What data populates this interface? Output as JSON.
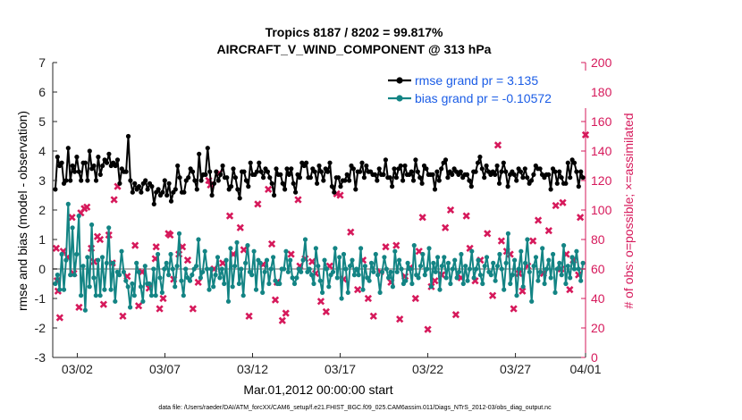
{
  "chart_data": {
    "type": "line",
    "title_line1": "Tropics 8187 / 8202 = 99.817%",
    "title_line2": "AIRCRAFT_V_WIND_COMPONENT @ 313 hPa",
    "xlabel": "Mar.01,2012 00:00:00 start",
    "ylabel": "rmse and bias (model - observation)",
    "y2label": "# of obs: o=possible; ×=assimilated",
    "xlim": [
      0.6,
      31.0
    ],
    "ylim": [
      -3,
      7
    ],
    "y2lim": [
      0,
      200
    ],
    "x_ticks": [
      {
        "value": 2,
        "label": "03/02"
      },
      {
        "value": 7,
        "label": "03/07"
      },
      {
        "value": 12,
        "label": "03/12"
      },
      {
        "value": 17,
        "label": "03/17"
      },
      {
        "value": 22,
        "label": "03/22"
      },
      {
        "value": 27,
        "label": "03/27"
      },
      {
        "value": 31,
        "label": "04/01"
      }
    ],
    "y_ticks": [
      "-3",
      "-2",
      "-1",
      "0",
      "1",
      "2",
      "3",
      "4",
      "5",
      "6",
      "7"
    ],
    "y2_ticks": [
      "0",
      "20",
      "40",
      "60",
      "80",
      "100",
      "120",
      "140",
      "160",
      "180",
      "200"
    ],
    "zero_line": 0,
    "colors": {
      "rmse": "#000000",
      "bias": "#138484",
      "obs": "#d6195b",
      "legend_text": "#1a5ce6",
      "zero": "#b0b0b0"
    },
    "series": [
      {
        "name": "rmse grand pr = 3.135",
        "values": [
          2.7,
          3.8,
          3.5,
          3.6,
          2.9,
          3.0,
          4.1,
          3.0,
          3.5,
          3.3,
          3.8,
          3.3,
          3.0,
          3.6,
          3.6,
          3.0,
          4.0,
          3.4,
          3.5,
          3.0,
          3.8,
          3.2,
          3.5,
          3.7,
          3.6,
          3.9,
          3.5,
          3.6,
          3.5,
          3.7,
          2.9,
          3.4,
          3.3,
          3.3,
          4.5,
          3.0,
          2.6,
          2.9,
          2.7,
          2.8,
          2.6,
          2.9,
          3.0,
          2.7,
          2.9,
          2.8,
          2.2,
          2.6,
          2.7,
          2.5,
          2.6,
          3.0,
          2.5,
          2.9,
          2.3,
          2.6,
          2.7,
          3.5,
          3.1,
          2.6,
          2.6,
          3.0,
          3.1,
          3.4,
          3.3,
          3.0,
          2.7,
          3.9,
          3.0,
          3.2,
          3.2,
          4.1,
          3.3,
          2.5,
          2.9,
          3.3,
          3.0,
          3.2,
          3.5,
          3.1,
          3.1,
          2.7,
          2.8,
          3.4,
          3.1,
          2.7,
          2.4,
          3.3,
          3.3,
          3.0,
          2.8,
          3.6,
          3.2,
          3.2,
          3.3,
          3.6,
          3.3,
          3.1,
          3.4,
          3.3,
          3.1,
          2.9,
          2.5,
          3.4,
          3.2,
          3.2,
          2.9,
          2.7,
          3.4,
          3.2,
          3.4,
          2.9,
          2.6,
          3.2,
          3.1,
          3.6,
          3.5,
          3.6,
          3.1,
          3.1,
          3.4,
          3.3,
          2.9,
          3.5,
          3.3,
          3.0,
          3.4,
          3.3,
          3.6,
          2.8,
          2.6,
          3.1,
          3.1,
          2.8,
          3.0,
          3.0,
          3.2,
          3.0,
          3.5,
          3.4,
          2.7,
          3.3,
          3.3,
          3.6,
          3.1,
          3.5,
          3.3,
          3.3,
          3.2,
          3.2,
          3.0,
          3.4,
          3.2,
          3.2,
          3.7,
          3.1,
          3.1,
          2.8,
          3.4,
          3.1,
          3.4,
          3.5,
          3.0,
          3.5,
          3.2,
          3.2,
          3.3,
          3.0,
          3.7,
          3.3,
          3.1,
          2.9,
          3.5,
          3.4,
          3.2,
          3.2,
          3.2,
          2.7,
          3.3,
          3.0,
          3.4,
          3.6,
          3.7,
          3.1,
          3.3,
          3.2,
          3.4,
          3.3,
          3.2,
          3.3,
          3.1,
          3.2,
          3.2,
          3.0,
          2.8,
          3.3,
          3.3,
          3.6,
          3.8,
          3.4,
          3.1,
          3.5,
          3.3,
          3.2,
          3.3,
          3.2,
          3.5,
          2.9,
          3.3,
          3.6,
          3.3,
          2.8,
          3.2,
          3.3,
          3.2,
          3.0,
          3.4,
          3.3,
          3.1,
          3.4,
          3.1,
          2.9,
          3.0,
          3.2,
          3.5,
          3.4,
          3.4,
          3.2,
          3.1,
          3.2,
          3.2,
          2.7,
          3.4,
          3.3,
          2.9,
          3.3,
          3.1,
          2.9,
          2.9,
          3.6,
          3.1,
          3.7,
          3.6,
          3.3,
          2.8,
          3.3,
          3.1
        ]
      },
      {
        "name": "bias grand pr = -0.10572",
        "values": [
          -0.5,
          -0.2,
          -0.7,
          0.5,
          -0.7,
          0.3,
          2.2,
          -0.2,
          1.4,
          -0.2,
          0.5,
          1.8,
          -0.9,
          0.1,
          -1.4,
          0.4,
          -0.6,
          1.5,
          -0.3,
          -0.9,
          0.3,
          -0.9,
          0.4,
          -0.7,
          0.2,
          1.4,
          -0.7,
          0.2,
          -1.1,
          -0.1,
          -0.2,
          0.6,
          -0.1,
          -0.4,
          -0.6,
          -1.3,
          -0.5,
          -0.9,
          0.2,
          -0.1,
          -0.6,
          -1.1,
          0.1,
          -0.5,
          -0.5,
          -0.9,
          0.0,
          -0.9,
          0.5,
          -0.3,
          -0.8,
          0.0,
          0.2,
          -0.2,
          0.5,
          0.0,
          -0.6,
          0.1,
          1.2,
          -0.4,
          -0.9,
          0.0,
          -0.3,
          -0.4,
          -0.2,
          0.0,
          0.1,
          1.0,
          -0.3,
          -0.1,
          0.6,
          0.0,
          -0.7,
          0.0,
          -0.6,
          -0.2,
          0.4,
          -0.3,
          0.0,
          -0.5,
          0.3,
          -1.1,
          0.7,
          -0.6,
          0.1,
          0.9,
          -0.5,
          0.0,
          -0.9,
          0.2,
          0.8,
          -0.1,
          -0.2,
          0.6,
          -0.7,
          0.3,
          0.2,
          -0.8,
          -0.1,
          0.3,
          -0.5,
          0.0,
          0.4,
          -0.4,
          -0.5,
          -0.5,
          0.0,
          0.0,
          0.6,
          -0.1,
          0.3,
          -0.3,
          -0.5,
          -0.3,
          0.0,
          -0.1,
          0.3,
          1.0,
          -0.1,
          0.0,
          -0.2,
          -0.5,
          0.7,
          0.1,
          -0.4,
          -0.8,
          0.3,
          0.0,
          -0.6,
          -0.2,
          -0.1,
          0.7,
          -0.3,
          0.4,
          -1.0,
          0.5,
          0.0,
          -0.8,
          0.1,
          0.3,
          -0.2,
          0.0,
          -0.2,
          0.7,
          -0.7,
          0.1,
          -0.3,
          -0.4,
          0.2,
          -0.1,
          0.5,
          -0.2,
          -0.8,
          -0.1,
          0.4,
          0.0,
          -0.3,
          -0.1,
          -0.6,
          0.6,
          -0.1,
          0.3,
          0.0,
          -0.5,
          -0.4,
          0.2,
          0.0,
          -0.5,
          0.8,
          -0.2,
          -0.3,
          0.1,
          0.5,
          -0.2,
          0.0,
          0.7,
          -0.6,
          0.2,
          -0.1,
          0.4,
          -0.7,
          0.1,
          0.4,
          -0.3,
          0.2,
          -0.5,
          0.0,
          0.3,
          -0.3,
          -0.1,
          0.5,
          -0.5,
          0.1,
          -0.4,
          0.0,
          0.6,
          -0.3,
          0.0,
          0.3,
          -0.2,
          -0.5,
          0.1,
          0.4,
          -0.1,
          -0.2,
          0.2,
          -0.4,
          0.1,
          0.5,
          0.0,
          -0.7,
          0.2,
          1.2,
          -0.5,
          -0.2,
          0.3,
          -0.9,
          0.0,
          0.6,
          -0.6,
          0.2,
          1.0,
          -0.1,
          -1.1,
          0.1,
          0.4,
          -0.4,
          -0.1,
          0.7,
          -0.5,
          0.0,
          0.3,
          -0.3,
          0.5,
          -0.8,
          0.0,
          0.2,
          -0.2,
          0.8,
          -0.5,
          0.1,
          -0.3,
          0.4,
          0.0,
          0.6,
          0.0,
          -0.4,
          0.2
        ]
      }
    ],
    "obs_points": [
      [
        0.8,
        74
      ],
      [
        0.85,
        52
      ],
      [
        0.9,
        45
      ],
      [
        1.0,
        27
      ],
      [
        1.2,
        72
      ],
      [
        1.45,
        68
      ],
      [
        1.7,
        95
      ],
      [
        1.8,
        57
      ],
      [
        2.1,
        34
      ],
      [
        2.2,
        98
      ],
      [
        2.4,
        101
      ],
      [
        2.55,
        102
      ],
      [
        2.8,
        74
      ],
      [
        2.95,
        65
      ],
      [
        3.15,
        82
      ],
      [
        3.3,
        80
      ],
      [
        3.5,
        36
      ],
      [
        3.8,
        83
      ],
      [
        4.0,
        64
      ],
      [
        4.1,
        107
      ],
      [
        4.3,
        116
      ],
      [
        4.6,
        28
      ],
      [
        4.85,
        55
      ],
      [
        5.3,
        76
      ],
      [
        5.5,
        35
      ],
      [
        5.7,
        58
      ],
      [
        6.1,
        47
      ],
      [
        6.45,
        67
      ],
      [
        6.5,
        75
      ],
      [
        6.7,
        33
      ],
      [
        6.9,
        40
      ],
      [
        7.2,
        84
      ],
      [
        7.3,
        83
      ],
      [
        7.5,
        53
      ],
      [
        7.8,
        70
      ],
      [
        8.0,
        75
      ],
      [
        8.3,
        66
      ],
      [
        8.6,
        33
      ],
      [
        8.9,
        51
      ],
      [
        9.5,
        120
      ],
      [
        9.6,
        117
      ],
      [
        9.8,
        60
      ],
      [
        10.1,
        125
      ],
      [
        10.3,
        64
      ],
      [
        10.7,
        96
      ],
      [
        10.9,
        70
      ],
      [
        11.3,
        88
      ],
      [
        11.5,
        73
      ],
      [
        11.8,
        28
      ],
      [
        12.3,
        104
      ],
      [
        12.6,
        63
      ],
      [
        12.9,
        114
      ],
      [
        13.1,
        77
      ],
      [
        13.3,
        39
      ],
      [
        13.4,
        51
      ],
      [
        13.7,
        25
      ],
      [
        13.9,
        30
      ],
      [
        14.2,
        70
      ],
      [
        14.6,
        107
      ],
      [
        14.7,
        62
      ],
      [
        15.0,
        67
      ],
      [
        15.4,
        65
      ],
      [
        15.6,
        57
      ],
      [
        15.9,
        38
      ],
      [
        16.2,
        31
      ],
      [
        16.4,
        62
      ],
      [
        16.8,
        111
      ],
      [
        17.0,
        110
      ],
      [
        17.2,
        53
      ],
      [
        17.6,
        85
      ],
      [
        18.0,
        46
      ],
      [
        18.3,
        66
      ],
      [
        18.6,
        40
      ],
      [
        18.9,
        28
      ],
      [
        19.3,
        58
      ],
      [
        19.6,
        75
      ],
      [
        19.9,
        51
      ],
      [
        20.2,
        76
      ],
      [
        20.4,
        26
      ],
      [
        20.7,
        55
      ],
      [
        21.0,
        61
      ],
      [
        21.3,
        40
      ],
      [
        21.5,
        72
      ],
      [
        21.7,
        95
      ],
      [
        22.0,
        19
      ],
      [
        22.2,
        48
      ],
      [
        22.4,
        52
      ],
      [
        22.8,
        56
      ],
      [
        23.0,
        88
      ],
      [
        23.3,
        100
      ],
      [
        23.6,
        29
      ],
      [
        23.9,
        54
      ],
      [
        24.2,
        96
      ],
      [
        24.4,
        74
      ],
      [
        24.7,
        52
      ],
      [
        25.0,
        66
      ],
      [
        25.4,
        84
      ],
      [
        25.7,
        42
      ],
      [
        26.0,
        144
      ],
      [
        26.2,
        79
      ],
      [
        26.5,
        72
      ],
      [
        26.7,
        70
      ],
      [
        26.9,
        33
      ],
      [
        27.2,
        57
      ],
      [
        27.4,
        45
      ],
      [
        27.7,
        62
      ],
      [
        28.0,
        79
      ],
      [
        28.3,
        93
      ],
      [
        28.6,
        57
      ],
      [
        28.9,
        86
      ],
      [
        29.3,
        103
      ],
      [
        29.6,
        60
      ],
      [
        29.7,
        105
      ],
      [
        29.9,
        70
      ],
      [
        30.1,
        46
      ],
      [
        30.3,
        66
      ],
      [
        30.6,
        56
      ],
      [
        30.7,
        95
      ],
      [
        31.0,
        151
      ]
    ]
  },
  "legend": {
    "rmse": "rmse grand pr = 3.135",
    "bias": "bias grand pr = -0.10572"
  },
  "footer": "data file: /Users/raeder/DAI/ATM_forcXX/CAM6_setup/f.e21.FHIST_BGC.f09_025.CAM6assim.011/Diags_NTrS_2012-03/obs_diag_output.nc"
}
